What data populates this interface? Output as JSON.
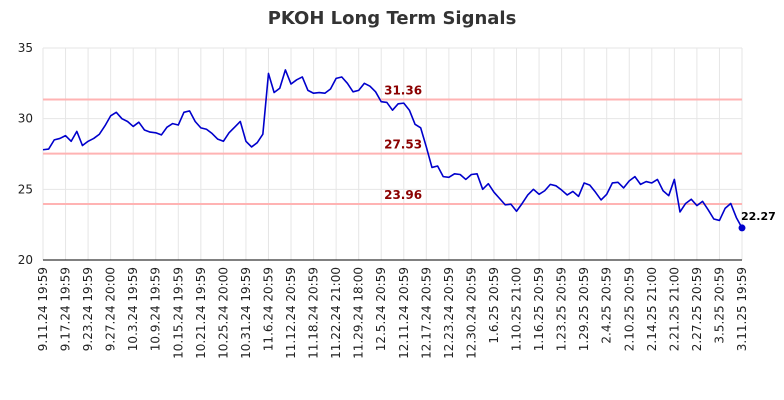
{
  "chart_data": {
    "type": "line",
    "title": "PKOH Long Term Signals",
    "xlabel": "",
    "ylabel": "",
    "ylim": [
      20,
      35
    ],
    "yticks": [
      20,
      25,
      30,
      35
    ],
    "grid": true,
    "legend": "none",
    "colors": {
      "line": "#0000cc",
      "reference": "#ffb3b3",
      "ref_label": "#8b0000",
      "marker": "#0000cc"
    },
    "x_tick_labels": [
      "9.11.24 19:59",
      "9.17.24 19:59",
      "9.23.24 19:59",
      "9.27.24 20:00",
      "10.3.24 19:59",
      "10.9.24 19:59",
      "10.15.24 19:59",
      "10.21.24 19:59",
      "10.25.24 20:00",
      "10.31.24 19:59",
      "11.6.24 20:59",
      "11.12.24 20:59",
      "11.18.24 20:59",
      "11.22.24 21:00",
      "11.29.24 18:00",
      "12.5.24 20:59",
      "12.11.24 20:59",
      "12.17.24 20:59",
      "12.23.24 20:59",
      "12.30.24 20:59",
      "1.6.25 20:59",
      "1.10.25 21:00",
      "1.16.25 20:59",
      "1.23.25 20:59",
      "1.29.25 20:59",
      "2.4.25 20:59",
      "2.10.25 20:59",
      "2.14.25 21:00",
      "2.21.25 21:00",
      "2.27.25 20:59",
      "3.5.25 20:59",
      "3.11.25 19:59"
    ],
    "reference_lines": [
      {
        "value": 31.36,
        "label": "31.36"
      },
      {
        "value": 27.53,
        "label": "27.53"
      },
      {
        "value": 23.96,
        "label": "23.96"
      }
    ],
    "last_value_label": "22.27",
    "series": [
      {
        "values": [
          27.8,
          27.85,
          28.5,
          28.6,
          28.8,
          28.4,
          29.1,
          28.1,
          28.4,
          28.6,
          28.9,
          29.5,
          30.2,
          30.45,
          30.0,
          29.8,
          29.45,
          29.75,
          29.2,
          29.05,
          29.0,
          28.85,
          29.4,
          29.65,
          29.55,
          30.45,
          30.55,
          29.8,
          29.35,
          29.25,
          28.95,
          28.55,
          28.4,
          29.0,
          29.4,
          29.8,
          28.4,
          28.0,
          28.3,
          28.9,
          33.2,
          31.85,
          32.15,
          33.45,
          32.45,
          32.75,
          32.95,
          32.0,
          31.8,
          31.85,
          31.8,
          32.1,
          32.85,
          32.95,
          32.5,
          31.9,
          32.0,
          32.5,
          32.3,
          31.9,
          31.2,
          31.15,
          30.6,
          31.05,
          31.1,
          30.6,
          29.6,
          29.35,
          28.0,
          26.55,
          26.65,
          25.9,
          25.85,
          26.1,
          26.05,
          25.7,
          26.05,
          26.1,
          25.0,
          25.4,
          24.8,
          24.35,
          23.9,
          23.95,
          23.45,
          24.0,
          24.6,
          25.0,
          24.65,
          24.9,
          25.35,
          25.25,
          24.95,
          24.6,
          24.85,
          24.5,
          25.45,
          25.3,
          24.8,
          24.25,
          24.65,
          25.45,
          25.5,
          25.1,
          25.6,
          25.9,
          25.35,
          25.55,
          25.45,
          25.7,
          24.9,
          24.55,
          25.7,
          23.4,
          24.0,
          24.3,
          23.85,
          24.15,
          23.55,
          22.9,
          22.8,
          23.65,
          24.0,
          23.0,
          22.27
        ]
      }
    ]
  }
}
